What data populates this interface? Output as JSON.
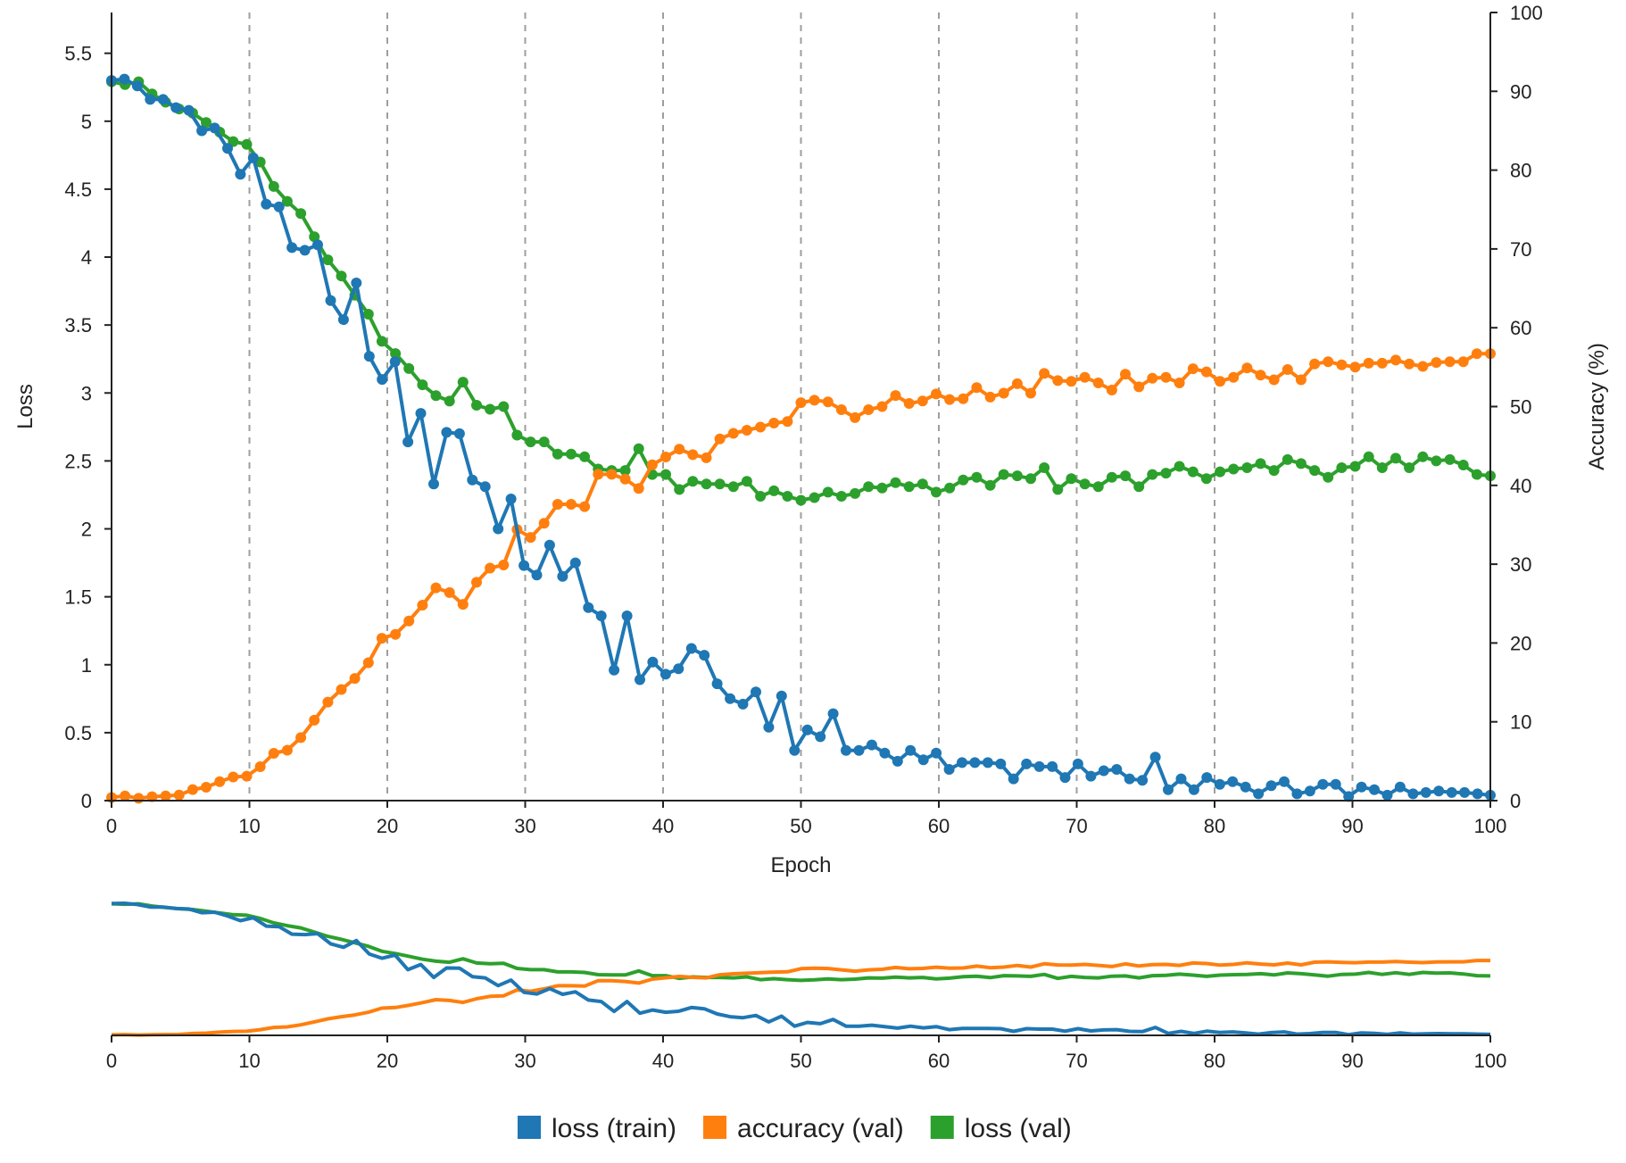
{
  "chart_data": {
    "type": "line",
    "xlabel": "Epoch",
    "ylabel_left": "Loss",
    "ylabel_right": "Accuracy (%)",
    "xlim": [
      0,
      100
    ],
    "ylim_left": [
      0,
      5.8
    ],
    "ylim_right": [
      0,
      100
    ],
    "x_ticks": [
      0,
      10,
      20,
      30,
      40,
      50,
      60,
      70,
      80,
      90,
      100
    ],
    "y_left_ticks": [
      0,
      0.5,
      1,
      1.5,
      2,
      2.5,
      3,
      3.5,
      4,
      4.5,
      5,
      5.5
    ],
    "y_right_ticks": [
      0,
      10,
      20,
      30,
      40,
      50,
      60,
      70,
      80,
      90,
      100
    ],
    "grid": "vertical dashed at x ticks",
    "legend_position": "bottom-center",
    "overview": {
      "x_ticks": [
        0,
        10,
        20,
        30,
        40,
        50,
        60,
        70,
        80,
        90,
        100
      ]
    },
    "series": [
      {
        "name": "loss (train)",
        "axis": "left",
        "color": "#1f77b4",
        "values": [
          5.3,
          5.31,
          5.26,
          5.16,
          5.16,
          5.1,
          5.08,
          4.93,
          4.95,
          4.8,
          4.61,
          4.73,
          4.39,
          4.37,
          4.07,
          4.05,
          4.09,
          3.68,
          3.54,
          3.81,
          3.27,
          3.1,
          3.23,
          2.64,
          2.85,
          2.33,
          2.71,
          2.7,
          2.36,
          2.31,
          2.0,
          2.22,
          1.73,
          1.66,
          1.88,
          1.65,
          1.75,
          1.42,
          1.36,
          0.96,
          1.36,
          0.89,
          1.02,
          0.93,
          0.97,
          1.12,
          1.07,
          0.86,
          0.75,
          0.71,
          0.8,
          0.54,
          0.77,
          0.37,
          0.52,
          0.47,
          0.64,
          0.37,
          0.37,
          0.41,
          0.35,
          0.29,
          0.37,
          0.3,
          0.35,
          0.23,
          0.28,
          0.28,
          0.28,
          0.27,
          0.16,
          0.27,
          0.25,
          0.25,
          0.17,
          0.27,
          0.18,
          0.22,
          0.23,
          0.16,
          0.15,
          0.32,
          0.08,
          0.16,
          0.08,
          0.17,
          0.12,
          0.14,
          0.1,
          0.05,
          0.11,
          0.14,
          0.05,
          0.07,
          0.12,
          0.12,
          0.03,
          0.1,
          0.08,
          0.04,
          0.1,
          0.05,
          0.06,
          0.07,
          0.06,
          0.06,
          0.05,
          0.04
        ]
      },
      {
        "name": "accuracy (val)",
        "axis": "right",
        "color": "#ff7f0e",
        "values": [
          0.4,
          0.6,
          0.3,
          0.5,
          0.6,
          0.7,
          1.4,
          1.7,
          2.4,
          3.0,
          3.1,
          4.3,
          6.0,
          6.4,
          8.0,
          10.2,
          12.5,
          14.1,
          15.5,
          17.5,
          20.6,
          21.1,
          22.8,
          24.8,
          27.0,
          26.4,
          24.9,
          27.7,
          29.5,
          29.9,
          34.4,
          33.4,
          35.2,
          37.6,
          37.6,
          37.3,
          41.4,
          41.4,
          40.8,
          39.6,
          42.6,
          43.6,
          44.6,
          43.9,
          43.5,
          45.9,
          46.6,
          47.0,
          47.4,
          47.9,
          48.1,
          50.5,
          50.8,
          50.6,
          49.6,
          48.6,
          49.6,
          50.0,
          51.4,
          50.4,
          50.7,
          51.6,
          50.9,
          51.0,
          52.4,
          51.2,
          51.7,
          52.9,
          51.7,
          54.2,
          53.3,
          53.2,
          53.7,
          53.0,
          52.1,
          54.1,
          52.5,
          53.6,
          53.7,
          53.0,
          54.8,
          54.4,
          53.2,
          53.7,
          54.9,
          54.0,
          53.4,
          54.7,
          53.4,
          55.4,
          55.7,
          55.3,
          55.0,
          55.5,
          55.5,
          55.9,
          55.4,
          55.1,
          55.6,
          55.7,
          55.7,
          56.7,
          56.7
        ]
      },
      {
        "name": "loss (val)",
        "axis": "left",
        "color": "#2ca02c",
        "values": [
          5.29,
          5.27,
          5.29,
          5.2,
          5.14,
          5.09,
          5.06,
          4.99,
          4.92,
          4.85,
          4.83,
          4.7,
          4.52,
          4.41,
          4.32,
          4.15,
          3.98,
          3.86,
          3.72,
          3.58,
          3.38,
          3.29,
          3.18,
          3.06,
          2.98,
          2.94,
          3.08,
          2.91,
          2.88,
          2.9,
          2.69,
          2.64,
          2.64,
          2.55,
          2.55,
          2.53,
          2.44,
          2.43,
          2.43,
          2.59,
          2.4,
          2.4,
          2.29,
          2.35,
          2.33,
          2.33,
          2.31,
          2.35,
          2.24,
          2.28,
          2.24,
          2.21,
          2.23,
          2.27,
          2.24,
          2.26,
          2.31,
          2.3,
          2.34,
          2.31,
          2.33,
          2.27,
          2.3,
          2.36,
          2.38,
          2.32,
          2.4,
          2.39,
          2.37,
          2.45,
          2.29,
          2.37,
          2.33,
          2.31,
          2.38,
          2.39,
          2.31,
          2.4,
          2.41,
          2.46,
          2.42,
          2.37,
          2.42,
          2.44,
          2.45,
          2.48,
          2.43,
          2.51,
          2.48,
          2.43,
          2.38,
          2.45,
          2.46,
          2.53,
          2.45,
          2.52,
          2.45,
          2.53,
          2.5,
          2.51,
          2.47,
          2.4,
          2.39
        ]
      }
    ]
  }
}
